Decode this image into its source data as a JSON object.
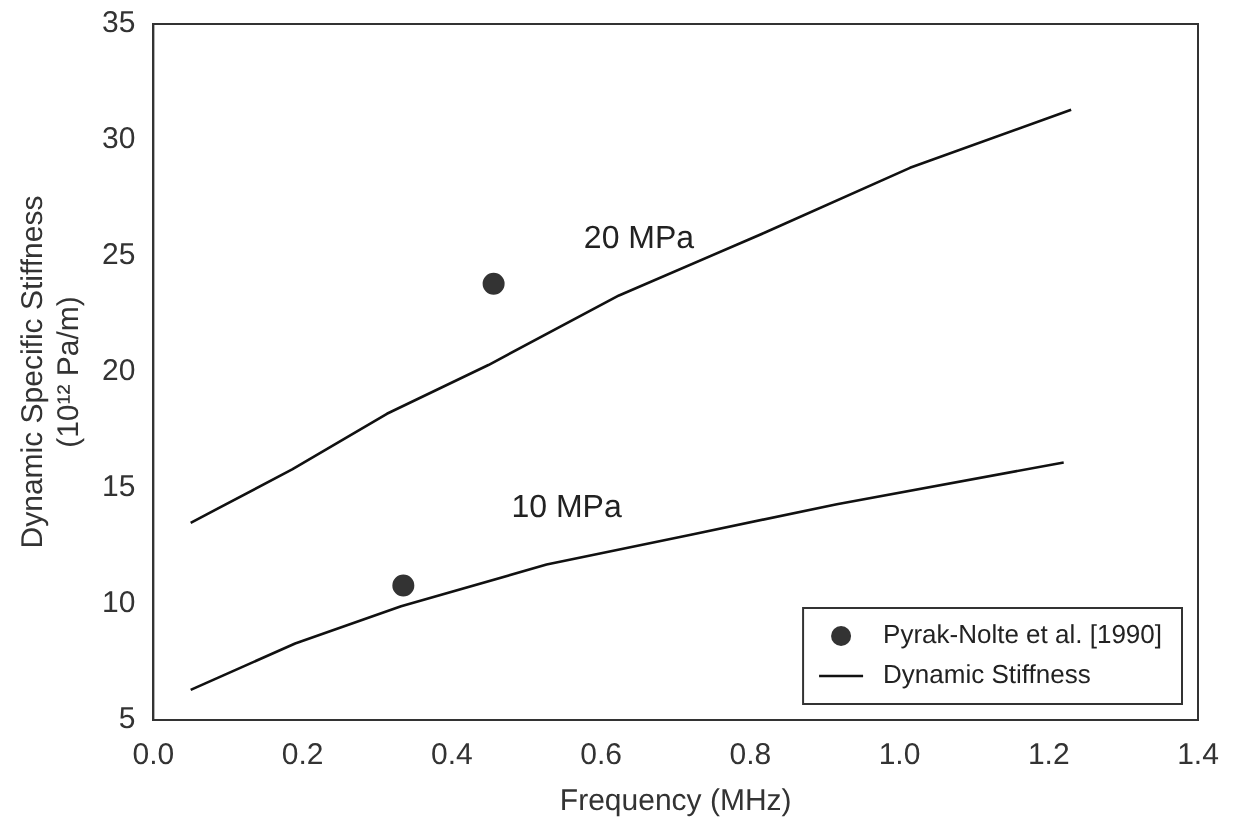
{
  "chart_data": {
    "type": "line",
    "xlabel": "Frequency (MHz)",
    "ylabel": "Dynamic Specific Stiffness\n(10¹² Pa/m)",
    "xlim": [
      0,
      1.4
    ],
    "xticks": [
      {
        "value": 0,
        "label": "0.0"
      },
      0.2,
      0.4,
      0.6,
      0.8,
      {
        "value": 1,
        "label": "1.0"
      },
      1.2,
      1.4
    ],
    "ylim": [
      5,
      35
    ],
    "yticks": [
      5,
      10,
      15,
      20,
      25,
      30,
      35
    ],
    "grid": false,
    "legend": "bottom right",
    "marker": "none",
    "series": [
      {
        "name": "Pyrak-Nolte et al. [1990]",
        "type": "scatter",
        "marker": "circle",
        "color": "#333333",
        "x": [
          0.456,
          0.335
        ],
        "values": [
          23.8,
          10.8
        ]
      },
      {
        "name": "Dynamic Stiffness",
        "color": "#111111",
        "x": [
          0.05,
          0.186,
          0.313,
          0.449,
          0.624,
          0.819,
          1.014,
          1.23
        ],
        "values": [
          13.5,
          15.8,
          18.2,
          20.3,
          23.3,
          26.0,
          28.8,
          31.3
        ]
      },
      {
        "color": "#111111",
        "x": [
          0.05,
          0.19,
          0.332,
          0.527,
          0.722,
          0.916,
          1.22
        ],
        "values": [
          6.3,
          8.3,
          9.9,
          11.7,
          13.0,
          14.3,
          16.1
        ]
      }
    ],
    "annotations": [
      "20 MPa",
      "10 MPa"
    ]
  }
}
